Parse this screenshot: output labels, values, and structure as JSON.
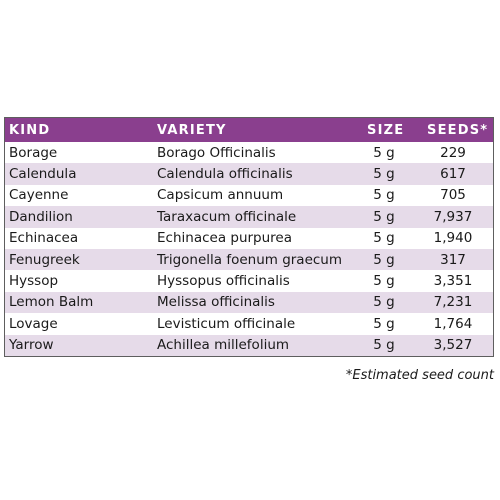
{
  "header": {
    "kind": "KIND",
    "variety": "VARIETY",
    "size": "SIZE",
    "seeds": "SEEDS*"
  },
  "rows": [
    {
      "kind": "Borage",
      "variety": "Borago Officinalis",
      "size": "5 g",
      "seeds": "229"
    },
    {
      "kind": "Calendula",
      "variety": "Calendula officinalis",
      "size": "5 g",
      "seeds": "617"
    },
    {
      "kind": "Cayenne",
      "variety": "Capsicum annuum",
      "size": "5 g",
      "seeds": "705"
    },
    {
      "kind": "Dandilion",
      "variety": "Taraxacum officinale",
      "size": "5 g",
      "seeds": "7,937"
    },
    {
      "kind": "Echinacea",
      "variety": "Echinacea purpurea",
      "size": "5 g",
      "seeds": "1,940"
    },
    {
      "kind": "Fenugreek",
      "variety": "Trigonella foenum graecum",
      "size": "5 g",
      "seeds": "317"
    },
    {
      "kind": "Hyssop",
      "variety": "Hyssopus officinalis",
      "size": "5 g",
      "seeds": "3,351"
    },
    {
      "kind": "Lemon Balm",
      "variety": "Melissa officinalis",
      "size": "5 g",
      "seeds": "7,231"
    },
    {
      "kind": "Lovage",
      "variety": "Levisticum officinale",
      "size": "5 g",
      "seeds": "1,764"
    },
    {
      "kind": "Yarrow",
      "variety": "Achillea millefolium",
      "size": "5 g",
      "seeds": "3,527"
    }
  ],
  "footnote": "*Estimated seed count",
  "colors": {
    "header_bg": "#8a3f8e",
    "stripe_bg": "#e6dbe9",
    "header_text": "#ffffff"
  }
}
